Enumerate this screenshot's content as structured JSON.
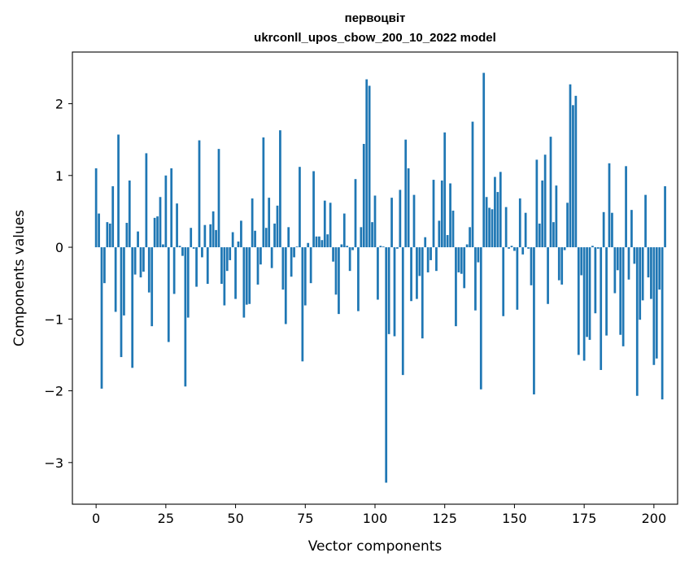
{
  "chart_data": {
    "type": "bar",
    "title": [
      "первоцвіт",
      "ukrconll_upos_cbow_200_10_2022 model"
    ],
    "xlabel": "Vector components",
    "ylabel": "Components values",
    "xlim": [
      -8.5,
      208.5
    ],
    "ylim": [
      -3.58,
      2.72
    ],
    "xticks": [
      0,
      25,
      50,
      75,
      100,
      125,
      150,
      175,
      200
    ],
    "yticks": [
      -3,
      -2,
      -1,
      0,
      1,
      2
    ],
    "bar_color": "#1f77b4",
    "grid": false,
    "legend": "none",
    "values": [
      1.1,
      0.47,
      -1.97,
      -0.5,
      0.35,
      0.33,
      0.85,
      -0.9,
      1.57,
      -1.53,
      -0.95,
      0.34,
      0.93,
      -1.68,
      -0.38,
      0.22,
      -0.42,
      -0.34,
      1.31,
      -0.63,
      -1.1,
      0.41,
      0.43,
      0.7,
      0.04,
      1.0,
      -1.32,
      1.1,
      -0.65,
      0.61,
      0.02,
      -0.12,
      -1.94,
      -0.98,
      0.27,
      -0.02,
      -0.55,
      1.49,
      -0.14,
      0.31,
      -0.51,
      0.32,
      0.5,
      0.24,
      1.37,
      -0.51,
      -0.81,
      -0.33,
      -0.18,
      0.21,
      -0.72,
      0.08,
      0.37,
      -0.98,
      -0.8,
      -0.79,
      0.68,
      0.23,
      -0.52,
      -0.24,
      1.53,
      0.27,
      0.69,
      -0.29,
      0.33,
      0.58,
      1.63,
      -0.59,
      -1.07,
      0.28,
      -0.41,
      -0.14,
      0.01,
      1.12,
      -1.59,
      -0.81,
      0.06,
      -0.5,
      1.06,
      0.15,
      0.15,
      0.1,
      0.65,
      0.18,
      0.62,
      -0.2,
      -0.66,
      -0.93,
      0.04,
      0.47,
      0.02,
      -0.33,
      -0.04,
      0.95,
      -0.89,
      0.28,
      1.44,
      2.34,
      2.25,
      0.35,
      0.72,
      -0.73,
      0.02,
      0.01,
      -3.28,
      -1.21,
      0.69,
      -1.24,
      -0.02,
      0.8,
      -1.78,
      1.5,
      1.1,
      -0.75,
      0.73,
      -0.72,
      -0.4,
      -1.27,
      0.14,
      -0.35,
      -0.18,
      0.94,
      -0.33,
      0.37,
      0.93,
      1.6,
      0.17,
      0.89,
      0.51,
      -1.1,
      -0.35,
      -0.37,
      -0.57,
      0.04,
      0.28,
      1.75,
      -0.88,
      -0.21,
      -1.98,
      2.43,
      0.7,
      0.55,
      0.53,
      0.98,
      0.77,
      1.05,
      -0.96,
      0.56,
      -0.02,
      0.02,
      -0.05,
      -0.87,
      0.68,
      -0.1,
      0.48,
      -0.02,
      -0.53,
      -2.05,
      1.22,
      0.33,
      0.93,
      1.29,
      -0.79,
      1.54,
      0.35,
      0.86,
      -0.46,
      -0.52,
      -0.04,
      0.62,
      2.27,
      1.98,
      2.11,
      -1.5,
      -0.39,
      -1.58,
      -1.25,
      -1.29,
      0.02,
      -0.92,
      -0.02,
      -1.71,
      0.49,
      -1.23,
      1.17,
      0.48,
      -0.64,
      -0.32,
      -1.22,
      -1.38,
      1.13,
      -0.45,
      0.52,
      -0.23,
      -2.07,
      -1.01,
      -0.74,
      0.73,
      -0.42,
      -0.72,
      -1.64,
      -1.55,
      -0.59,
      -2.12,
      0.85
    ]
  }
}
